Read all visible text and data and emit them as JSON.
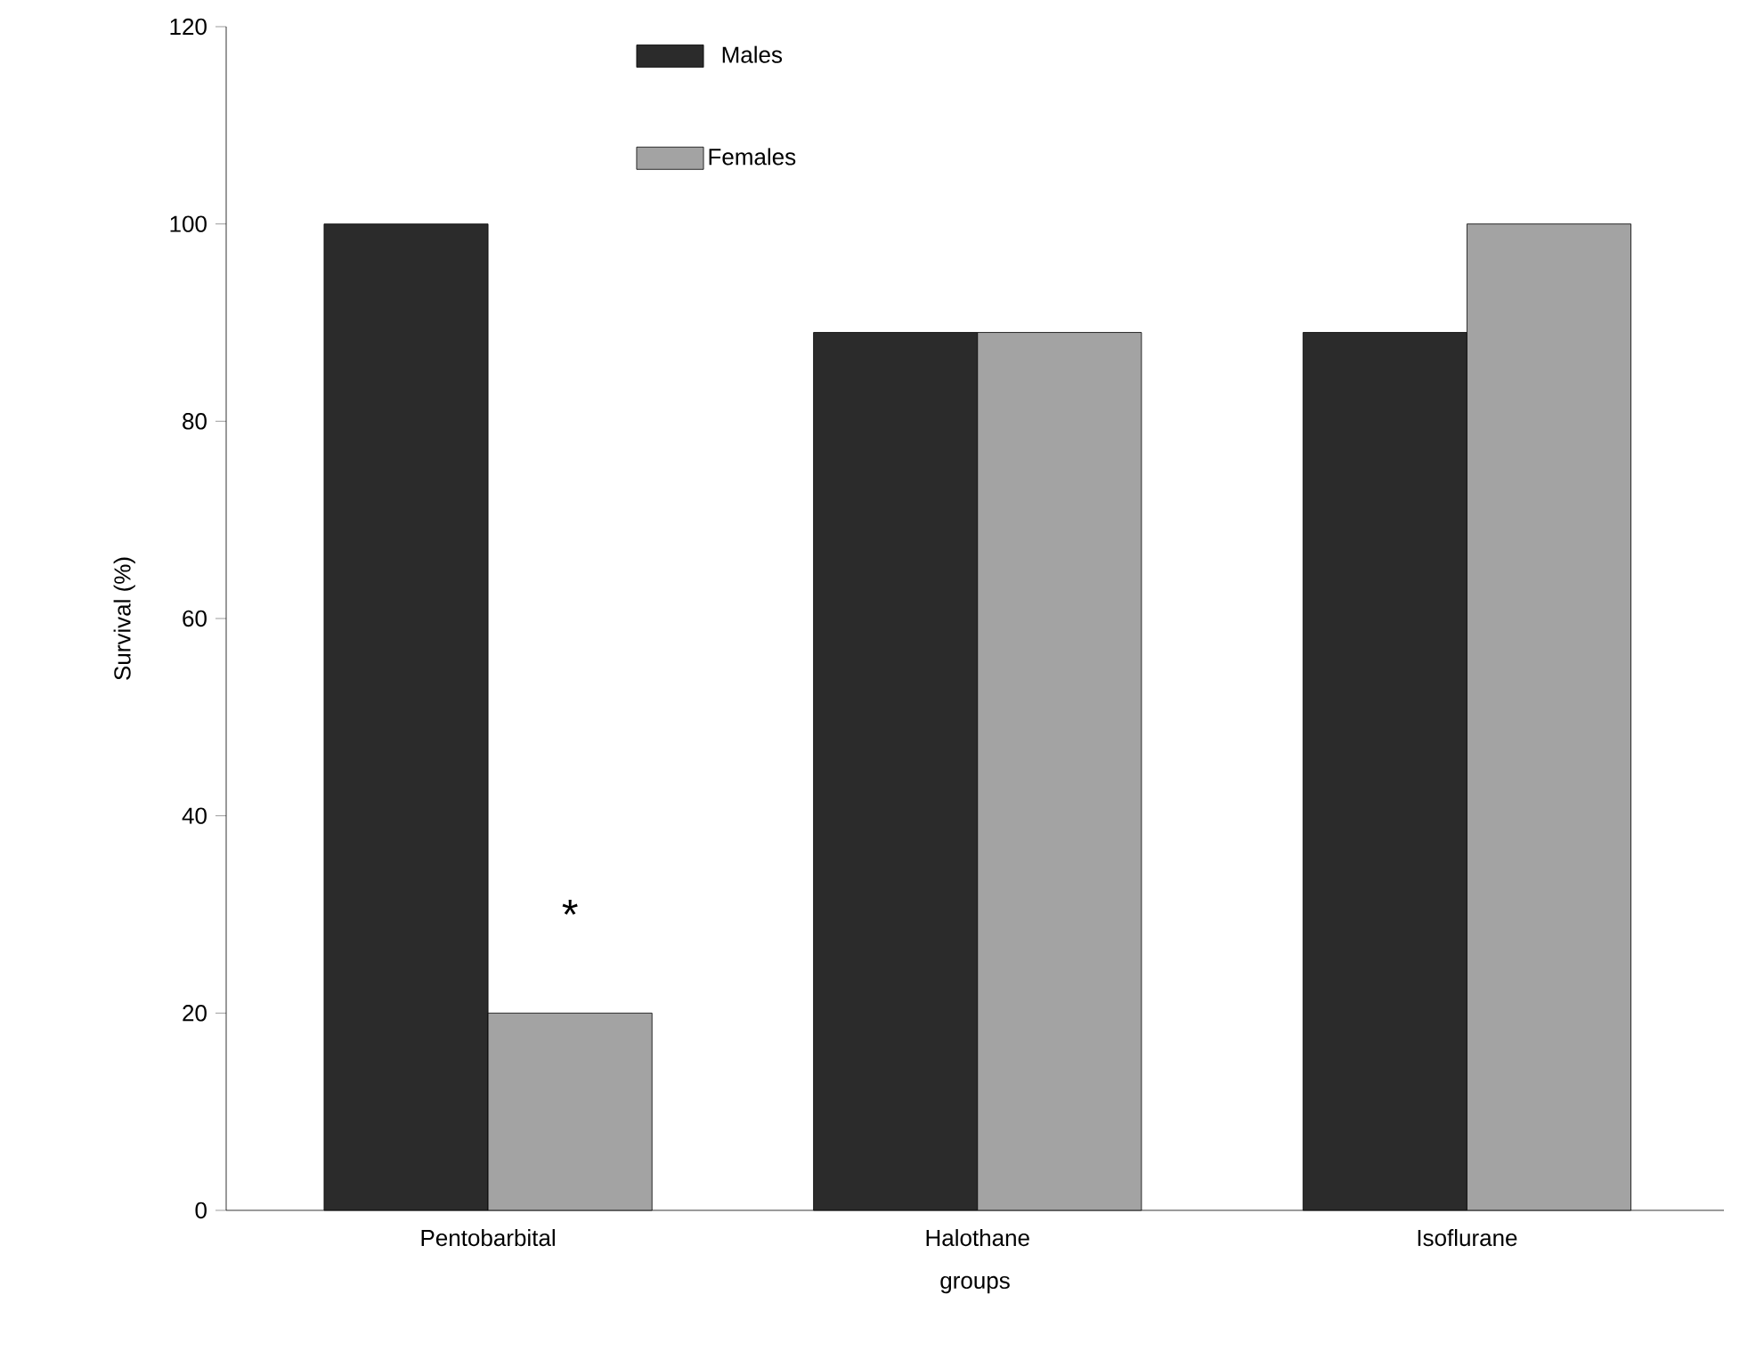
{
  "chart_data": {
    "type": "bar",
    "xlabel": "groups",
    "ylabel": "Survival (%)",
    "categories": [
      "Pentobarbital",
      "Halothane",
      "Isoflurane"
    ],
    "series": [
      {
        "name": "Males",
        "color": "#2b2b2b",
        "values": [
          100,
          89,
          89
        ]
      },
      {
        "name": "Females",
        "color": "#a3a3a3",
        "values": [
          20,
          89,
          100
        ]
      }
    ],
    "ylim": [
      0,
      120
    ],
    "yticks": [
      0,
      20,
      40,
      60,
      80,
      100,
      120
    ],
    "grid": false,
    "legend": "top",
    "annotations": [
      {
        "text": "*",
        "x": "Pentobarbital",
        "y": 30
      }
    ]
  }
}
